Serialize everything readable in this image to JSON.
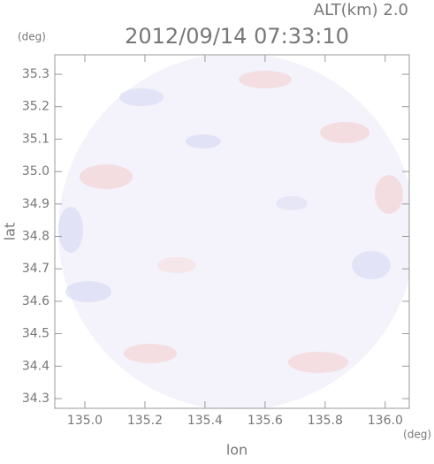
{
  "chart_data": {
    "type": "image",
    "title": "2012/09/14 07:33:10",
    "annotation": "ALT(km) 2.0",
    "x_label": "lon",
    "y_label": "lat",
    "x_unit": "(deg)",
    "y_unit": "(deg)",
    "xlim": [
      134.9,
      136.08
    ],
    "ylim": [
      34.27,
      35.36
    ],
    "xticks": [
      {
        "value": 135,
        "label": "135.0"
      },
      135.2,
      135.4,
      135.6,
      135.8,
      {
        "value": 136,
        "label": "136.0"
      }
    ],
    "yticks": [
      34.3,
      34.4,
      34.5,
      34.6,
      34.7,
      34.8,
      34.9,
      {
        "value": 35,
        "label": "35.0"
      },
      35.1,
      35.2,
      35.3
    ]
  }
}
